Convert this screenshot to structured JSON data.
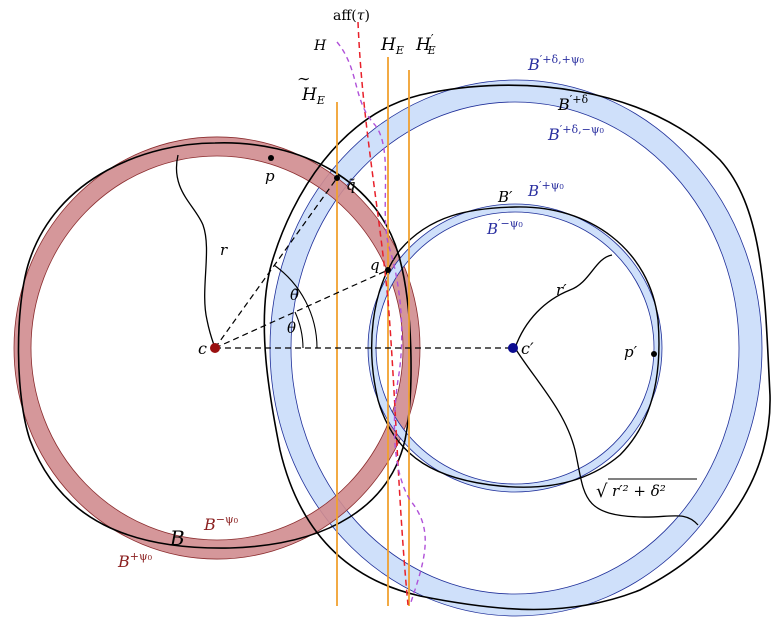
{
  "labels": {
    "aff": "aff(",
    "tau": "τ",
    "close": ")",
    "H": "H",
    "HE": "H",
    "HE_sub": "E",
    "HEp": "H",
    "HEp_prime": "′",
    "HEp_sub": "E",
    "HEt": "H",
    "HEt_sub": "E",
    "Bp_pd_ppsi": "B",
    "Bp_pd_ppsi_sup": "′+δ,+ψ₀",
    "Bp_pd": "B",
    "Bp_pd_sup": "′+δ",
    "Bp_pd_mpsi": "B",
    "Bp_pd_mpsi_sup": "′+δ,−ψ₀",
    "Bp": "B′",
    "Bp_ppsi": "B",
    "Bp_ppsi_sup": "′+ψ₀",
    "Bp_mpsi": "B",
    "Bp_mpsi_sup": "′−ψ₀",
    "p": "p",
    "qt": "q̃",
    "q": "q",
    "r": "r",
    "theta_t": "θ̃",
    "theta": "θ",
    "c": "c",
    "cp": "c′",
    "rp": "r′",
    "pp": "p′",
    "sqrt": "√",
    "sqrt_body": "r′² + δ²",
    "B": "B",
    "B_mpsi": "B",
    "B_mpsi_sup": "−ψ₀",
    "B_ppsi": "B",
    "B_ppsi_sup": "+ψ₀"
  },
  "colors": {
    "red_fill": "#d08c8f",
    "red_stroke": "#8b2d2f",
    "blue_fill": "#cfe0fa",
    "blue_stroke": "#1f2f99",
    "blue_text": "#2a2fa0",
    "red_text": "#8b2020",
    "orange": "#f0a030",
    "red_dash": "#e8202a",
    "purple_dash": "#b050d8",
    "c_dot": "#9a1010",
    "cp_dot": "#0c0c90"
  }
}
